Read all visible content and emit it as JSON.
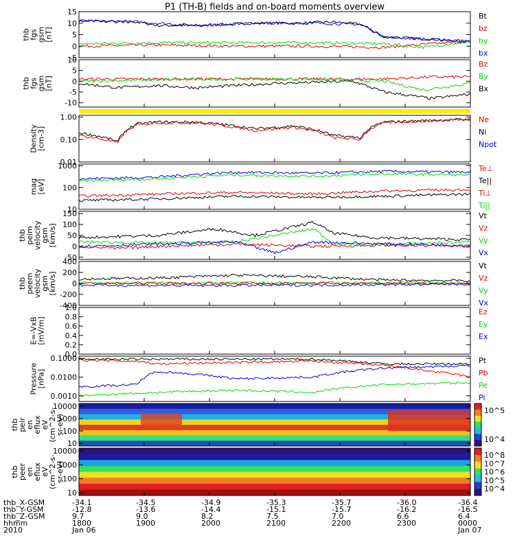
{
  "title": "P1 (TH-B) fields and on-board moments overview",
  "colors": {
    "black": "#000000",
    "red": "#e00000",
    "green": "#00dd00",
    "blue": "#0000e0",
    "yellow": "#ffee00"
  },
  "chart_data": [
    {
      "type": "line",
      "ylabel": [
        "thb",
        "fgs",
        "gsm",
        "[nT]"
      ],
      "yticks": [
        15,
        10,
        5,
        0,
        -5
      ],
      "ylim": [
        -5,
        15
      ],
      "legend": [
        {
          "name": "Bt",
          "color": "#000000"
        },
        {
          "name": "bz",
          "color": "#e00000"
        },
        {
          "name": "by",
          "color": "#00dd00"
        },
        {
          "name": "bx",
          "color": "#0000e0"
        }
      ],
      "series": [
        {
          "name": "Bt",
          "color": "#000000",
          "x": [
            0,
            0.15,
            0.2,
            0.3,
            0.45,
            0.55,
            0.65,
            0.72,
            0.78,
            0.9,
            1
          ],
          "y": [
            11,
            10.5,
            9,
            9,
            10,
            10,
            10.5,
            9.5,
            4,
            3,
            2
          ]
        },
        {
          "name": "bz",
          "color": "#e00000",
          "x": [
            0,
            0.2,
            0.4,
            0.6,
            0.78,
            0.9,
            1
          ],
          "y": [
            0,
            0.5,
            0,
            0,
            -0.5,
            1,
            2
          ]
        },
        {
          "name": "by",
          "color": "#00dd00",
          "x": [
            0,
            0.2,
            0.4,
            0.6,
            0.78,
            0.88,
            1
          ],
          "y": [
            1,
            1.5,
            1.5,
            1.5,
            1,
            -0.5,
            2
          ]
        },
        {
          "name": "bx",
          "color": "#0000e0",
          "x": [
            0,
            0.15,
            0.3,
            0.45,
            0.6,
            0.72,
            0.78,
            1
          ],
          "y": [
            11,
            10.5,
            9,
            10,
            10,
            9.5,
            4,
            2
          ]
        }
      ]
    },
    {
      "type": "line",
      "ylabel": [
        "thb",
        "fgs",
        "gsm",
        "[nT]"
      ],
      "yticks": [
        10,
        5,
        0,
        -5,
        -10
      ],
      "ylim": [
        -12,
        10
      ],
      "legend": [
        {
          "name": "Bz",
          "color": "#e00000"
        },
        {
          "name": "By",
          "color": "#00dd00"
        },
        {
          "name": "Bx",
          "color": "#000000"
        }
      ],
      "series": [
        {
          "name": "Bz",
          "color": "#e00000",
          "x": [
            0,
            0.3,
            0.6,
            0.78,
            0.9,
            1
          ],
          "y": [
            1,
            1,
            1,
            1,
            2,
            2
          ]
        },
        {
          "name": "By",
          "color": "#00dd00",
          "x": [
            0,
            0.3,
            0.6,
            0.78,
            0.88,
            1
          ],
          "y": [
            0,
            1,
            1,
            0,
            -4,
            -1
          ]
        },
        {
          "name": "Bx",
          "color": "#000000",
          "x": [
            0,
            0.1,
            0.2,
            0.3,
            0.5,
            0.7,
            0.78,
            0.9,
            1
          ],
          "y": [
            -1,
            -3,
            -2,
            -3,
            -1,
            0,
            -5,
            -8,
            -6
          ]
        }
      ]
    },
    {
      "type": "line",
      "ylabel": [
        "Density",
        "[cm-3]"
      ],
      "yticks": [
        "1.00",
        "0.10",
        "0.01"
      ],
      "log": true,
      "ylim": [
        0.01,
        1.2
      ],
      "legend": [
        {
          "name": "Ne",
          "color": "#e00000"
        },
        {
          "name": "Ni",
          "color": "#000000"
        },
        {
          "name": "Npot",
          "color": "#0000e0"
        }
      ],
      "series": [
        {
          "name": "Ni",
          "color": "#000000",
          "x": [
            0,
            0.1,
            0.15,
            0.2,
            0.3,
            0.45,
            0.55,
            0.65,
            0.72,
            0.78,
            1
          ],
          "y": [
            0.2,
            0.08,
            0.5,
            0.6,
            0.6,
            0.3,
            0.4,
            0.15,
            0.12,
            0.6,
            0.8
          ]
        },
        {
          "name": "Ne",
          "color": "#e00000",
          "x": [
            0,
            0.1,
            0.15,
            0.2,
            0.3,
            0.45,
            0.55,
            0.65,
            0.72,
            0.78,
            1
          ],
          "y": [
            0.15,
            0.07,
            0.45,
            0.55,
            0.55,
            0.25,
            0.35,
            0.12,
            0.1,
            0.55,
            0.8
          ]
        }
      ]
    },
    {
      "type": "line",
      "ylabel": [
        "mag",
        "[eV]"
      ],
      "yticks": [
        "1000",
        "100",
        "10"
      ],
      "log": true,
      "ylim": [
        10,
        1200
      ],
      "legend": [
        {
          "name": "Te⊥",
          "color": "#e00000"
        },
        {
          "name": "Te||",
          "color": "#000000"
        },
        {
          "name": "Ti⊥",
          "color": "#e00000"
        },
        {
          "name": "Ti||",
          "color": "#00dd00"
        }
      ],
      "series": [
        {
          "name": "Ti⊥",
          "color": "#0000e0",
          "x": [
            0,
            0.2,
            0.4,
            0.6,
            0.78,
            1
          ],
          "y": [
            250,
            300,
            500,
            450,
            550,
            500
          ]
        },
        {
          "name": "Ti||",
          "color": "#00dd00",
          "x": [
            0,
            0.2,
            0.4,
            0.6,
            0.78,
            1
          ],
          "y": [
            200,
            250,
            380,
            330,
            420,
            380
          ]
        },
        {
          "name": "Te⊥",
          "color": "#e00000",
          "x": [
            0,
            0.2,
            0.4,
            0.6,
            0.78,
            1
          ],
          "y": [
            40,
            50,
            60,
            50,
            70,
            80
          ]
        },
        {
          "name": "Te||",
          "color": "#000000",
          "x": [
            0,
            0.2,
            0.4,
            0.6,
            0.78,
            1
          ],
          "y": [
            25,
            30,
            40,
            35,
            40,
            50
          ]
        }
      ]
    },
    {
      "type": "line",
      "ylabel": [
        "thb",
        "peim",
        "velocity",
        "gsm",
        "[km/s]"
      ],
      "yticks": [
        150,
        100,
        50,
        0,
        -50
      ],
      "ylim": [
        -60,
        160
      ],
      "legend": [
        {
          "name": "Vt",
          "color": "#000000"
        },
        {
          "name": "Vz",
          "color": "#e00000"
        },
        {
          "name": "Vy",
          "color": "#00dd00"
        },
        {
          "name": "Vx",
          "color": "#0000e0"
        }
      ],
      "series": [
        {
          "name": "Vt",
          "color": "#000000",
          "x": [
            0,
            0.2,
            0.35,
            0.45,
            0.6,
            0.65,
            0.75,
            1
          ],
          "y": [
            40,
            50,
            80,
            50,
            110,
            60,
            40,
            30
          ]
        },
        {
          "name": "Vy",
          "color": "#00dd00",
          "x": [
            0,
            0.2,
            0.4,
            0.6,
            0.65,
            0.8,
            1
          ],
          "y": [
            20,
            15,
            20,
            80,
            10,
            10,
            20
          ]
        },
        {
          "name": "Vz",
          "color": "#e00000",
          "x": [
            0,
            0.1,
            0.2,
            0.4,
            0.6,
            0.8,
            1
          ],
          "y": [
            0,
            -10,
            0,
            10,
            0,
            5,
            0
          ]
        },
        {
          "name": "Vx",
          "color": "#0000e0",
          "x": [
            0,
            0.2,
            0.4,
            0.5,
            0.6,
            0.8,
            1
          ],
          "y": [
            0,
            10,
            20,
            -30,
            20,
            10,
            5
          ]
        }
      ]
    },
    {
      "type": "line",
      "ylabel": [
        "thb",
        "peem",
        "velocity",
        "gsm",
        "[km/s]"
      ],
      "yticks": [
        400,
        200,
        0,
        -200,
        -400
      ],
      "ylim": [
        -400,
        400
      ],
      "legend": [
        {
          "name": "Vt",
          "color": "#000000"
        },
        {
          "name": "Vz",
          "color": "#e00000"
        },
        {
          "name": "Vy",
          "color": "#00dd00"
        },
        {
          "name": "Vx",
          "color": "#0000e0"
        }
      ],
      "series": [
        {
          "name": "Vt",
          "color": "#000000",
          "x": [
            0,
            0.2,
            0.4,
            0.6,
            0.78,
            1
          ],
          "y": [
            80,
            100,
            150,
            120,
            60,
            50
          ]
        },
        {
          "name": "Vy",
          "color": "#00dd00",
          "x": [
            0,
            0.5,
            1
          ],
          "y": [
            10,
            10,
            10
          ]
        },
        {
          "name": "Vz",
          "color": "#e00000",
          "x": [
            0,
            0.5,
            1
          ],
          "y": [
            0,
            0,
            0
          ]
        },
        {
          "name": "Vx",
          "color": "#0000e0",
          "x": [
            0,
            0.3,
            0.6,
            1
          ],
          "y": [
            -30,
            -40,
            -30,
            -10
          ]
        }
      ]
    },
    {
      "type": "line",
      "ylabel": [
        "E=-VxB",
        "[mV/m]"
      ],
      "yticks": [
        "1.0",
        "0.8",
        "0.6",
        "0.4",
        "0.2",
        "0.0"
      ],
      "ylim": [
        0,
        1
      ],
      "legend": [
        {
          "name": "Ez",
          "color": "#e00000"
        },
        {
          "name": "Ey",
          "color": "#00dd00"
        },
        {
          "name": "Ex",
          "color": "#0000e0"
        }
      ],
      "series": []
    },
    {
      "type": "line",
      "ylabel": [
        "Pressure",
        "[nPa]"
      ],
      "yticks": [
        "0.1000",
        "0.0100",
        "0.0010"
      ],
      "log": true,
      "ylim": [
        0.0005,
        0.13
      ],
      "legend": [
        {
          "name": "Pt",
          "color": "#000000"
        },
        {
          "name": "Pb",
          "color": "#e00000"
        },
        {
          "name": "Pe",
          "color": "#00dd00"
        },
        {
          "name": "Pi",
          "color": "#0000e0"
        }
      ],
      "series": [
        {
          "name": "Pb",
          "color": "#e00000",
          "x": [
            0,
            0.15,
            0.2,
            0.4,
            0.6,
            0.78,
            0.9,
            1
          ],
          "y": [
            0.08,
            0.07,
            0.05,
            0.06,
            0.07,
            0.04,
            0.02,
            0.01
          ]
        },
        {
          "name": "Pt",
          "color": "#000000",
          "x": [
            0,
            0.3,
            0.6,
            0.78,
            1
          ],
          "y": [
            0.09,
            0.09,
            0.09,
            0.05,
            0.05
          ]
        },
        {
          "name": "Pi",
          "color": "#0000e0",
          "x": [
            0,
            0.15,
            0.2,
            0.4,
            0.6,
            0.78,
            1
          ],
          "y": [
            0.003,
            0.004,
            0.02,
            0.008,
            0.01,
            0.03,
            0.04
          ]
        },
        {
          "name": "Pe",
          "color": "#00dd00",
          "x": [
            0,
            0.2,
            0.4,
            0.6,
            0.78,
            1
          ],
          "y": [
            0.001,
            0.0015,
            0.002,
            0.0015,
            0.004,
            0.005
          ]
        }
      ]
    },
    {
      "type": "heatmap",
      "ylabel": [
        "thb",
        "peir",
        "en",
        "eflux",
        "eV",
        "(cm^2-s-",
        "sr-eV)"
      ],
      "yticks": [
        "10000",
        "1000",
        "100",
        "10"
      ],
      "colorbar_ticks": [
        "10^5",
        "10^4"
      ]
    },
    {
      "type": "heatmap",
      "ylabel": [
        "thb",
        "peer",
        "en",
        "eflux",
        "eV",
        "(cm^2-s-",
        "sr-eV)"
      ],
      "yticks": [
        "10000",
        "1000",
        "100",
        "10"
      ],
      "colorbar_ticks": [
        "10^8",
        "10^7",
        "10^6",
        "10^5",
        "10^4"
      ]
    }
  ],
  "ephemeris": {
    "labels": [
      "thb_X-GSM",
      "thb_Y-GSM",
      "thb_Z-GSM",
      "hhmm",
      "2010"
    ],
    "columns": [
      [
        "-34.1",
        "-12.8",
        "9.7",
        "1800",
        "Jan 06"
      ],
      [
        "-34.5",
        "-13.6",
        "9.0",
        "1900",
        ""
      ],
      [
        "-34.9",
        "-14.4",
        "8.2",
        "2000",
        ""
      ],
      [
        "-35.3",
        "-15.1",
        "7.5",
        "2100",
        ""
      ],
      [
        "-35.7",
        "-15.7",
        "7.0",
        "2200",
        ""
      ],
      [
        "-36.0",
        "-16.2",
        "6.6",
        "2300",
        ""
      ],
      [
        "-36.4",
        "-16.5",
        "6.4",
        "0000",
        "Jan 07"
      ]
    ]
  }
}
